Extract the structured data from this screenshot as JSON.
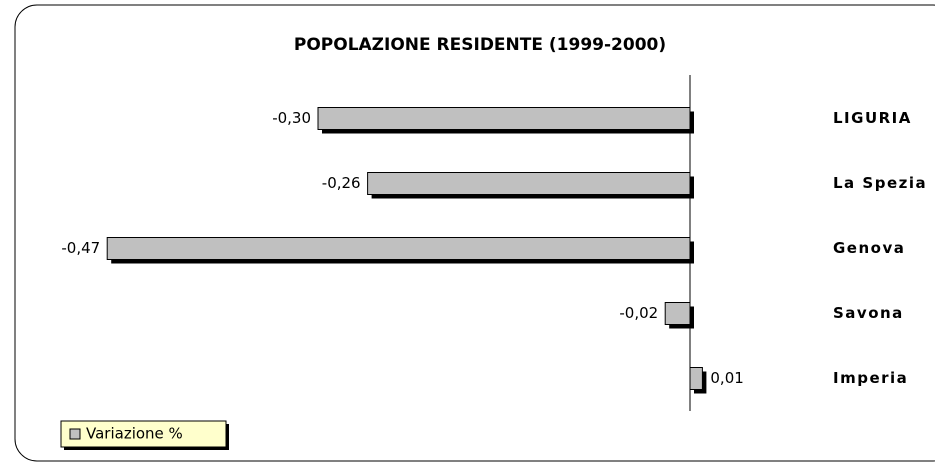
{
  "chart_data": {
    "type": "bar",
    "orientation": "horizontal",
    "title": "POPOLAZIONE RESIDENTE (1999-2000)",
    "categories": [
      "LIGURIA",
      "La Spezia",
      "Genova",
      "Savona",
      "Imperia"
    ],
    "series": [
      {
        "name": "Variazione %",
        "color": "#c0c0c0",
        "values": [
          -0.3,
          -0.26,
          -0.47,
          -0.02,
          0.01
        ],
        "value_labels": [
          "-0,30",
          "-0,26",
          "-0,47",
          "-0,02",
          "0,01"
        ]
      }
    ],
    "xlim": [
      -0.5,
      0.15
    ],
    "legend": "bottom-left"
  }
}
